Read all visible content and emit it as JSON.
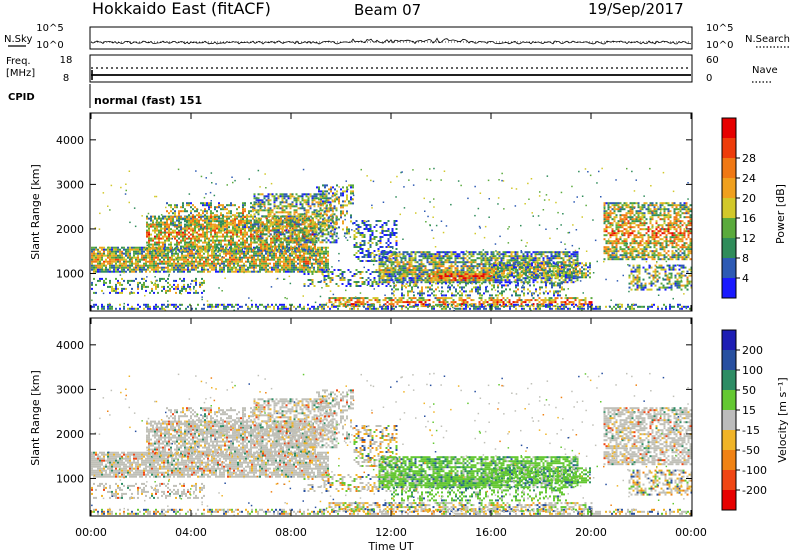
{
  "header": {
    "title": "Hokkaido East (fitACF)",
    "beam": "Beam 07",
    "date": "19/Sep/2017"
  },
  "noise_panel": {
    "left_label": "N.Sky",
    "right_label": "N.Search",
    "ticks_left": [
      "10^5",
      "10^0"
    ],
    "ticks_right": [
      "10^5",
      "10^0"
    ]
  },
  "freq_panel": {
    "left_label_1": "Freq.",
    "left_label_2": "[MHz]",
    "right_label": "Nave",
    "ticks_left": [
      "18",
      "8"
    ],
    "ticks_right": [
      "60",
      "0"
    ]
  },
  "cpid_panel": {
    "label": "CPID",
    "value": "normal (fast) 151"
  },
  "chart_data": [
    {
      "type": "heatmap",
      "name": "power",
      "ylabel": "Slant Range [km]",
      "ylim": [
        180,
        4580
      ],
      "y_ticks": [
        "1000",
        "2000",
        "3000",
        "4000"
      ],
      "colorbar": {
        "label": "Power [dB]",
        "ticks": [
          "4",
          "8",
          "12",
          "16",
          "20",
          "24",
          "28"
        ],
        "colors": [
          "#1a1aff",
          "#2d5ab4",
          "#2f8c5a",
          "#5aaa3c",
          "#d2c82a",
          "#f0a01e",
          "#f07814",
          "#ee3c0a",
          "#e60000"
        ]
      }
    },
    {
      "type": "heatmap",
      "name": "velocity",
      "ylabel": "Slant Range [km]",
      "ylim": [
        180,
        4580
      ],
      "y_ticks": [
        "1000",
        "2000",
        "3000",
        "4000"
      ],
      "colorbar": {
        "label": "Velocity [m s⁻¹]",
        "ticks": [
          "200",
          "100",
          "50",
          "15",
          "-15",
          "-50",
          "-100",
          "-200"
        ],
        "colors": [
          "#1e1eb4",
          "#2850a0",
          "#2d8c64",
          "#64c832",
          "#bcbcbc",
          "#f0b428",
          "#f08214",
          "#f04614",
          "#e60000"
        ]
      }
    }
  ],
  "time_axis": {
    "label": "Time UT",
    "ticks": [
      "00:00",
      "04:00",
      "08:00",
      "12:00",
      "16:00",
      "20:00",
      "00:00"
    ]
  }
}
